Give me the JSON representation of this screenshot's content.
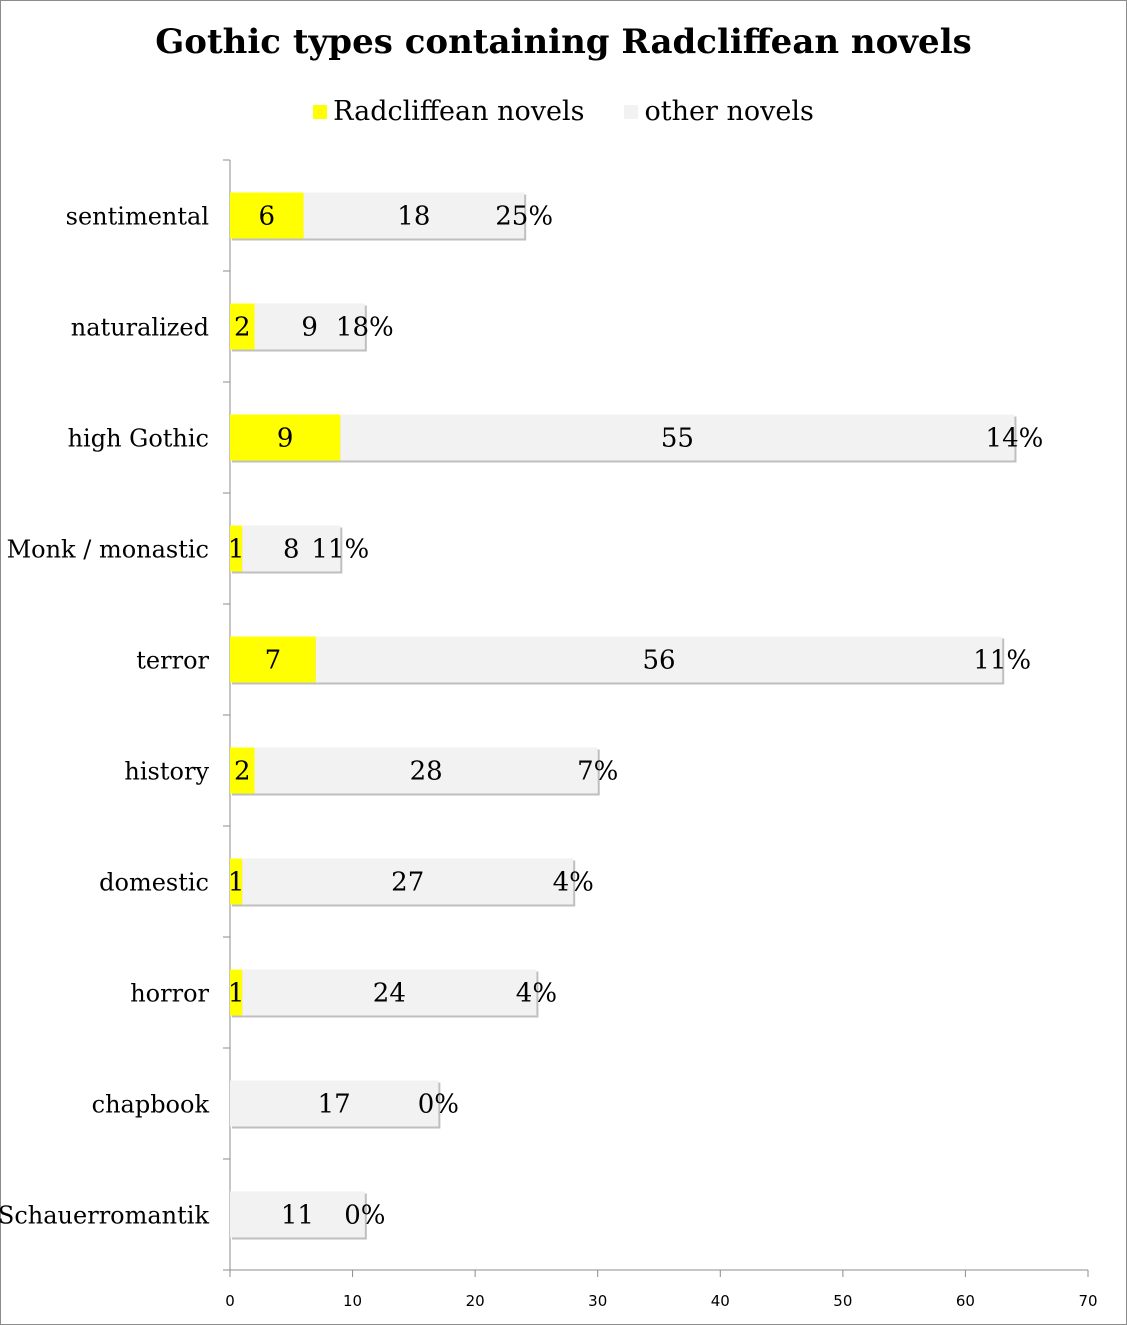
{
  "chart_data": {
    "type": "bar",
    "orientation": "horizontal",
    "stacked": true,
    "title": "Gothic types containing Radcliffean novels",
    "categories": [
      "sentimental",
      "naturalized",
      "high Gothic",
      "Monk / monastic",
      "terror",
      "history",
      "domestic",
      "horror",
      "chapbook",
      "Schauerromantik"
    ],
    "series": [
      {
        "name": "Radcliffean novels",
        "color": "#ffff00",
        "values": [
          6,
          2,
          9,
          1,
          7,
          2,
          1,
          1,
          0,
          0
        ]
      },
      {
        "name": "other novels",
        "color": "#f2f2f2",
        "values": [
          18,
          9,
          55,
          8,
          56,
          28,
          27,
          24,
          17,
          11
        ]
      }
    ],
    "percent_labels": [
      "25%",
      "18%",
      "14%",
      "11%",
      "11%",
      "7%",
      "4%",
      "4%",
      "0%",
      "0%"
    ],
    "xlim": [
      0,
      70
    ],
    "xticks": [
      "0",
      "10",
      "20",
      "30",
      "40",
      "50",
      "60",
      "70"
    ],
    "legend_position": "top",
    "grid": false
  }
}
